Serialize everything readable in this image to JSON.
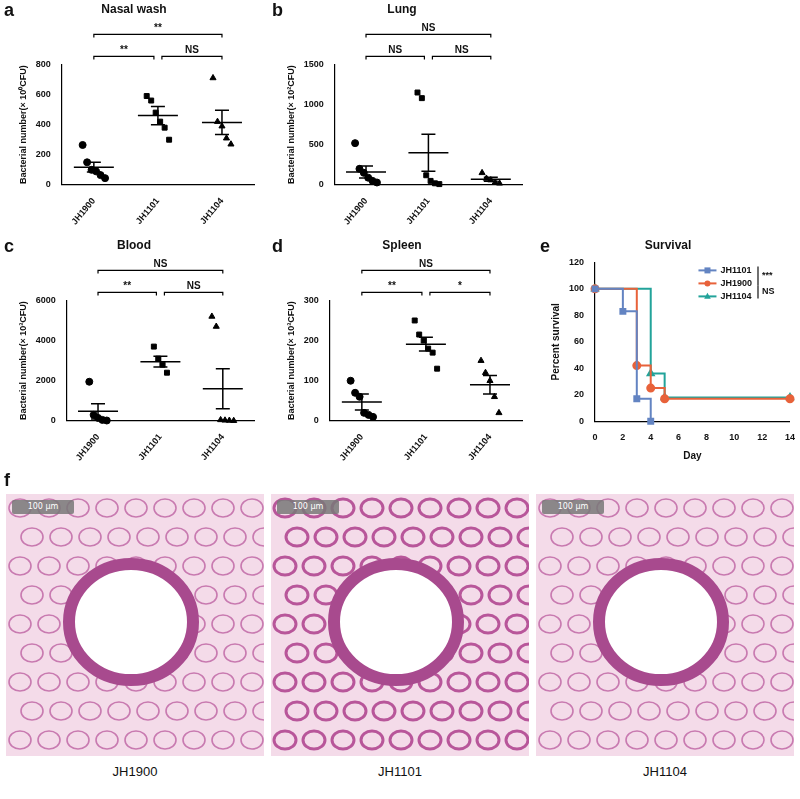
{
  "chart_data": [
    {
      "panel": "a",
      "type": "strip",
      "title": "Nasal wash",
      "y_label": "Bacterial number(× 10⁰CFU)",
      "color": "#000000",
      "ylim": [
        0,
        800
      ],
      "yticks": [
        0,
        200,
        400,
        600,
        800
      ],
      "groups": [
        {
          "name": "JH1900",
          "marker": "circle",
          "values": [
            265,
            150,
            100,
            90,
            65,
            45
          ],
          "mean": 118,
          "sem": 33
        },
        {
          "name": "JH1101",
          "marker": "square",
          "values": [
            590,
            560,
            480,
            420,
            380,
            300
          ],
          "mean": 460,
          "sem": 60
        },
        {
          "name": "JH1104",
          "marker": "triangle",
          "values": [
            710,
            420,
            390,
            310,
            270
          ],
          "mean": 415,
          "sem": 80
        }
      ],
      "comparisons": [
        {
          "groups": [
            "JH1900",
            "JH1101"
          ],
          "label": "**"
        },
        {
          "groups": [
            "JH1101",
            "JH1104"
          ],
          "label": "NS"
        },
        {
          "groups": [
            "JH1900",
            "JH1104"
          ],
          "label": "**"
        }
      ]
    },
    {
      "panel": "b",
      "type": "strip",
      "title": "Lung",
      "y_label": "Bacterial number(× 10²CFU)",
      "color": "#000000",
      "ylim": [
        0,
        1500
      ],
      "yticks": [
        0,
        500,
        1000,
        1500
      ],
      "groups": [
        {
          "name": "JH1900",
          "marker": "circle",
          "values": [
            520,
            200,
            150,
            90,
            50,
            30
          ],
          "mean": 160,
          "sem": 75
        },
        {
          "name": "JH1101",
          "marker": "square",
          "values": [
            1150,
            1080,
            120,
            50,
            20,
            10
          ],
          "mean": 400,
          "sem": 230
        },
        {
          "name": "JH1104",
          "marker": "triangle",
          "values": [
            150,
            80,
            60,
            30,
            20
          ],
          "mean": 70,
          "sem": 25
        }
      ],
      "comparisons": [
        {
          "groups": [
            "JH1900",
            "JH1101"
          ],
          "label": "NS"
        },
        {
          "groups": [
            "JH1101",
            "JH1104"
          ],
          "label": "NS"
        },
        {
          "groups": [
            "JH1900",
            "JH1104"
          ],
          "label": "NS"
        }
      ]
    },
    {
      "panel": "c",
      "type": "strip",
      "title": "Blood",
      "y_label": "Bacterial number(× 10³CFU)",
      "color": "#000000",
      "ylim": [
        0,
        6000
      ],
      "yticks": [
        0,
        2000,
        4000,
        6000
      ],
      "groups": [
        {
          "name": "JH1900",
          "marker": "circle",
          "values": [
            1950,
            300,
            150,
            50,
            20
          ],
          "mean": 480,
          "sem": 380
        },
        {
          "name": "JH1101",
          "marker": "square",
          "values": [
            3700,
            3100,
            2800,
            2400
          ],
          "mean": 2950,
          "sem": 270
        },
        {
          "name": "JH1104",
          "marker": "triangle",
          "values": [
            5200,
            4700,
            50,
            30,
            20,
            10
          ],
          "mean": 1600,
          "sem": 1000
        }
      ],
      "comparisons": [
        {
          "groups": [
            "JH1900",
            "JH1101"
          ],
          "label": "**"
        },
        {
          "groups": [
            "JH1101",
            "JH1104"
          ],
          "label": "NS"
        },
        {
          "groups": [
            "JH1900",
            "JH1104"
          ],
          "label": "NS"
        }
      ]
    },
    {
      "panel": "d",
      "type": "strip",
      "title": "Spleen",
      "y_label": "Bacterial number(× 10³CFU)",
      "color": "#000000",
      "ylim": [
        0,
        300
      ],
      "yticks": [
        0,
        100,
        200,
        300
      ],
      "groups": [
        {
          "name": "JH1900",
          "marker": "circle",
          "values": [
            100,
            70,
            60,
            20,
            15,
            10
          ],
          "mean": 47,
          "sem": 20
        },
        {
          "name": "JH1101",
          "marker": "square",
          "values": [
            250,
            215,
            200,
            180,
            170,
            130
          ],
          "mean": 191,
          "sem": 17
        },
        {
          "name": "JH1104",
          "marker": "triangle",
          "values": [
            150,
            120,
            100,
            60,
            20
          ],
          "mean": 90,
          "sem": 23
        }
      ],
      "comparisons": [
        {
          "groups": [
            "JH1900",
            "JH1101"
          ],
          "label": "**"
        },
        {
          "groups": [
            "JH1101",
            "JH1104"
          ],
          "label": "*"
        },
        {
          "groups": [
            "JH1900",
            "JH1104"
          ],
          "label": "NS"
        }
      ]
    },
    {
      "panel": "e",
      "type": "line",
      "title": "Survival",
      "x_label": "Day",
      "y_label": "Percent survival",
      "xlim": [
        0,
        14
      ],
      "xticks": [
        0,
        2,
        4,
        6,
        8,
        10,
        12,
        14
      ],
      "ylim": [
        0,
        120
      ],
      "yticks": [
        0,
        20,
        40,
        60,
        80,
        100,
        120
      ],
      "legend": "top-right",
      "series": [
        {
          "name": "JH1101",
          "color": "#6384c2",
          "marker": "square",
          "x": [
            0,
            2,
            3,
            4
          ],
          "values": [
            100,
            83,
            17,
            0
          ]
        },
        {
          "name": "JH1900",
          "color": "#e8623a",
          "marker": "circle",
          "x": [
            0,
            3,
            4,
            5,
            14
          ],
          "values": [
            100,
            42,
            25,
            17,
            17
          ]
        },
        {
          "name": "JH1104",
          "color": "#22a39a",
          "marker": "triangle",
          "x": [
            0,
            4,
            5,
            14
          ],
          "values": [
            100,
            36,
            18,
            18
          ]
        }
      ],
      "comparisons": [
        {
          "groups": [
            "JH1101",
            "JH1900"
          ],
          "label": "***"
        },
        {
          "groups": [
            "JH1900",
            "JH1104"
          ],
          "label": "NS"
        }
      ]
    }
  ],
  "image_panel": {
    "panel": "f",
    "images": [
      {
        "caption": "JH1900",
        "scale_bar": "100 μm"
      },
      {
        "caption": "JH1101",
        "scale_bar": "100 μm"
      },
      {
        "caption": "JH1104",
        "scale_bar": "100 μm"
      }
    ]
  }
}
